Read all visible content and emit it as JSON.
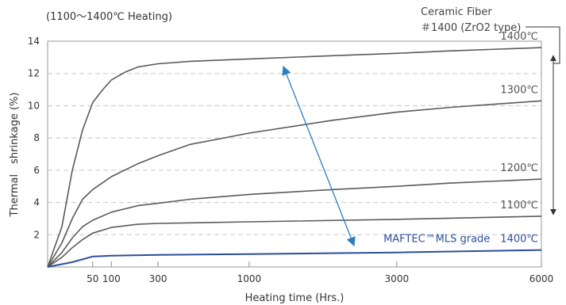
{
  "chart_data": {
    "type": "line",
    "title": "(1100〜1400℃ Heating)",
    "xlabel": "Heating time (Hrs.)",
    "ylabel": "Thermal　shrinkage (%)",
    "x_ticks": [
      50,
      100,
      300,
      1000,
      3000,
      6000
    ],
    "y_ticks": [
      2,
      4,
      6,
      8,
      10,
      12,
      14
    ],
    "ylim": [
      0,
      14
    ],
    "grid": true,
    "series": [
      {
        "name": "1400℃",
        "color": "#5a5a5a",
        "points": [
          [
            0,
            0
          ],
          [
            5,
            2.5
          ],
          [
            15,
            6
          ],
          [
            30,
            8.5
          ],
          [
            50,
            10.2
          ],
          [
            75,
            11
          ],
          [
            100,
            11.6
          ],
          [
            150,
            12.1
          ],
          [
            200,
            12.4
          ],
          [
            300,
            12.6
          ],
          [
            500,
            12.75
          ],
          [
            1000,
            12.9
          ],
          [
            2000,
            13.1
          ],
          [
            3000,
            13.25
          ],
          [
            4000,
            13.4
          ],
          [
            6000,
            13.6
          ]
        ]
      },
      {
        "name": "1300℃",
        "color": "#5a5a5a",
        "points": [
          [
            0,
            0
          ],
          [
            5,
            1.5
          ],
          [
            15,
            3
          ],
          [
            30,
            4.2
          ],
          [
            50,
            4.8
          ],
          [
            100,
            5.6
          ],
          [
            200,
            6.4
          ],
          [
            300,
            6.9
          ],
          [
            500,
            7.6
          ],
          [
            1000,
            8.3
          ],
          [
            2000,
            9.1
          ],
          [
            3000,
            9.6
          ],
          [
            4000,
            9.9
          ],
          [
            6000,
            10.3
          ]
        ]
      },
      {
        "name": "1200℃",
        "color": "#5a5a5a",
        "points": [
          [
            0,
            0
          ],
          [
            5,
            0.9
          ],
          [
            15,
            1.8
          ],
          [
            30,
            2.5
          ],
          [
            50,
            2.9
          ],
          [
            100,
            3.4
          ],
          [
            200,
            3.8
          ],
          [
            300,
            3.95
          ],
          [
            500,
            4.2
          ],
          [
            1000,
            4.5
          ],
          [
            2000,
            4.8
          ],
          [
            3000,
            5.0
          ],
          [
            4000,
            5.2
          ],
          [
            6000,
            5.45
          ]
        ]
      },
      {
        "name": "1100℃",
        "color": "#5a5a5a",
        "points": [
          [
            0,
            0
          ],
          [
            5,
            0.6
          ],
          [
            15,
            1.2
          ],
          [
            30,
            1.7
          ],
          [
            50,
            2.1
          ],
          [
            100,
            2.45
          ],
          [
            200,
            2.65
          ],
          [
            300,
            2.7
          ],
          [
            1000,
            2.8
          ],
          [
            3000,
            2.95
          ],
          [
            6000,
            3.15
          ]
        ]
      },
      {
        "name": "MAFTEC™MLS grade　1400℃",
        "color": "#2c4e9a",
        "points": [
          [
            0,
            0
          ],
          [
            15,
            0.3
          ],
          [
            50,
            0.65
          ],
          [
            100,
            0.7
          ],
          [
            300,
            0.75
          ],
          [
            1000,
            0.8
          ],
          [
            3000,
            0.9
          ],
          [
            6000,
            1.05
          ]
        ]
      }
    ],
    "annotations": {
      "fiber_line1": "Ceramic Fiber",
      "fiber_line2": "＃1400 (ZrO2 type)"
    }
  }
}
